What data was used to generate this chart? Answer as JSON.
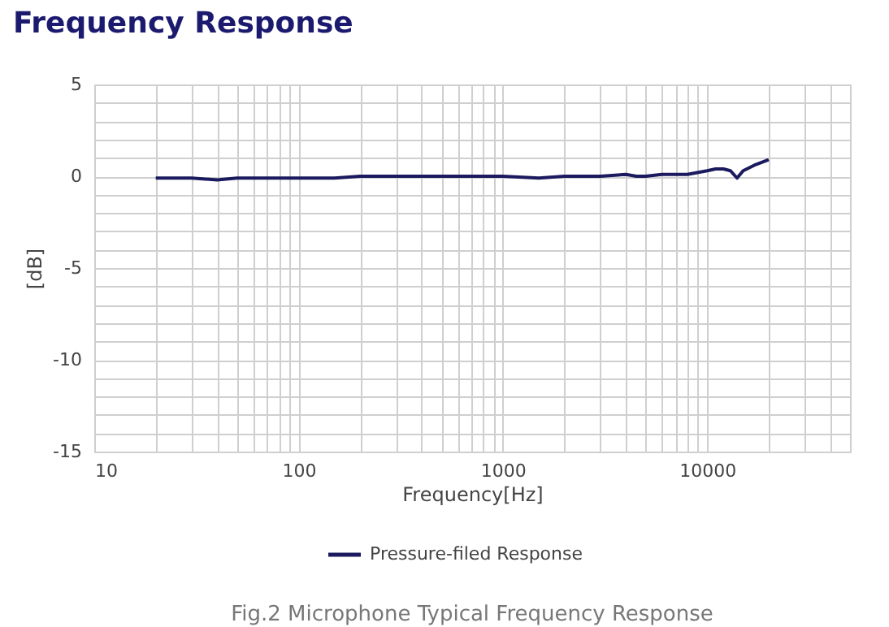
{
  "chart_data": {
    "type": "line",
    "title": "Frequency Response",
    "xlabel": "Frequency[Hz]",
    "ylabel": "[dB]",
    "annotations": [
      "Fig.2  Microphone Typical Frequency Response"
    ],
    "log": "x",
    "grid": true,
    "legend": "bottom",
    "marker": "none",
    "line_style": "solid",
    "xlim": [
      10,
      50000
    ],
    "xticks": [
      10,
      {
        "value": 20,
        "label": null
      },
      {
        "value": 30,
        "label": null
      },
      {
        "value": 40,
        "label": null
      },
      {
        "value": 50,
        "label": null
      },
      {
        "value": 60,
        "label": null
      },
      {
        "value": 70,
        "label": null
      },
      {
        "value": 80,
        "label": null
      },
      {
        "value": 90,
        "label": null
      },
      100,
      {
        "value": 200,
        "label": null
      },
      {
        "value": 300,
        "label": null
      },
      {
        "value": 400,
        "label": null
      },
      {
        "value": 500,
        "label": null
      },
      {
        "value": 600,
        "label": null
      },
      {
        "value": 700,
        "label": null
      },
      {
        "value": 800,
        "label": null
      },
      {
        "value": 900,
        "label": null
      },
      1000,
      {
        "value": 2000,
        "label": null
      },
      {
        "value": 3000,
        "label": null
      },
      {
        "value": 4000,
        "label": null
      },
      {
        "value": 5000,
        "label": null
      },
      {
        "value": 6000,
        "label": null
      },
      {
        "value": 7000,
        "label": null
      },
      {
        "value": 8000,
        "label": null
      },
      {
        "value": 9000,
        "label": null
      },
      10000,
      {
        "value": 20000,
        "label": null
      },
      {
        "value": 30000,
        "label": null
      },
      {
        "value": 40000,
        "label": null
      },
      {
        "value": 50000,
        "label": null
      }
    ],
    "ylim": [
      -15,
      5
    ],
    "yticks": [
      -15,
      {
        "value": -14,
        "label": null
      },
      {
        "value": -13,
        "label": null
      },
      {
        "value": -12,
        "label": null
      },
      {
        "value": -11,
        "label": null
      },
      -10,
      {
        "value": -9,
        "label": null
      },
      {
        "value": -8,
        "label": null
      },
      {
        "value": -7,
        "label": null
      },
      {
        "value": -6,
        "label": null
      },
      -5,
      {
        "value": -4,
        "label": null
      },
      {
        "value": -3,
        "label": null
      },
      {
        "value": -2,
        "label": null
      },
      {
        "value": -1,
        "label": null
      },
      0,
      {
        "value": 1,
        "label": null
      },
      {
        "value": 2,
        "label": null
      },
      {
        "value": 3,
        "label": null
      },
      {
        "value": 4,
        "label": null
      },
      5
    ],
    "x": [
      20,
      30,
      40,
      50,
      60,
      80,
      100,
      150,
      200,
      300,
      500,
      700,
      1000,
      1500,
      2000,
      3000,
      4000,
      4500,
      5000,
      6000,
      8000,
      10000,
      11000,
      12000,
      13000,
      14000,
      15000,
      17000,
      20000
    ],
    "series": [
      {
        "name": "Pressure-filed Response",
        "color": "#1b1a5e",
        "values": [
          -0.1,
          -0.1,
          -0.2,
          -0.1,
          -0.1,
          -0.1,
          -0.1,
          -0.1,
          0,
          0,
          0,
          0,
          0,
          -0.1,
          0,
          0,
          0.1,
          0,
          0,
          0.1,
          0.1,
          0.3,
          0.4,
          0.4,
          0.3,
          -0.1,
          0.3,
          0.6,
          0.9
        ]
      }
    ]
  }
}
